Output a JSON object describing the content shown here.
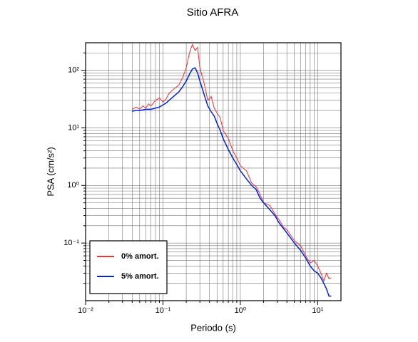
{
  "chart_data": {
    "type": "line",
    "title": "Sitio AFRA",
    "x_label": "Periodo (s)",
    "y_label": "PSA (cm/s²)",
    "log_x": true,
    "log_y": true,
    "grid": true,
    "legend": "lower left",
    "xlim": [
      0.01,
      20
    ],
    "ylim": [
      0.01,
      300
    ],
    "xticks": [
      {
        "value": 0.01,
        "label": "10⁻²"
      },
      {
        "value": 0.1,
        "label": "10⁻¹"
      },
      {
        "value": 1,
        "label": "10⁰"
      },
      {
        "value": 10,
        "label": "10¹"
      }
    ],
    "yticks": [
      {
        "value": 0.1,
        "label": "10⁻¹"
      },
      {
        "value": 1,
        "label": "10⁰"
      },
      {
        "value": 10,
        "label": "10¹"
      },
      {
        "value": 100,
        "label": "10²"
      }
    ],
    "xminorticks": [
      0.02,
      0.03,
      0.04,
      0.05,
      0.06,
      0.07,
      0.08,
      0.09,
      0.2,
      0.3,
      0.4,
      0.5,
      0.6,
      0.7,
      0.8,
      0.9,
      2,
      3,
      4,
      5,
      6,
      7,
      8,
      9
    ],
    "yminorticks": [
      0.02,
      0.03,
      0.04,
      0.05,
      0.06,
      0.07,
      0.08,
      0.09,
      0.2,
      0.3,
      0.4,
      0.5,
      0.6,
      0.7,
      0.8,
      0.9,
      2,
      3,
      4,
      5,
      6,
      7,
      8,
      9,
      20,
      30,
      40,
      50,
      60,
      70,
      80,
      90,
      200
    ],
    "x": [
      0.04,
      0.045,
      0.05,
      0.055,
      0.06,
      0.065,
      0.07,
      0.08,
      0.09,
      0.1,
      0.11,
      0.12,
      0.14,
      0.16,
      0.18,
      0.2,
      0.22,
      0.24,
      0.26,
      0.28,
      0.3,
      0.34,
      0.38,
      0.42,
      0.46,
      0.5,
      0.55,
      0.6,
      0.7,
      0.8,
      0.9,
      1.0,
      1.2,
      1.4,
      1.6,
      1.8,
      2.0,
      2.4,
      2.8,
      3.2,
      3.6,
      4.0,
      5.0,
      6.0,
      7.0,
      8.0,
      9.0,
      10,
      11,
      12,
      13,
      14,
      15
    ],
    "series": [
      {
        "name": "0% amort.",
        "color": "#ee3333",
        "values": [
          21,
          23,
          21,
          24,
          22,
          26,
          24,
          30,
          33,
          28,
          32,
          40,
          48,
          55,
          75,
          110,
          200,
          280,
          220,
          250,
          110,
          60,
          30,
          35,
          22,
          18,
          15,
          9,
          6.5,
          4,
          3,
          2.2,
          1.8,
          1.1,
          0.95,
          0.7,
          0.5,
          0.45,
          0.32,
          0.25,
          0.19,
          0.17,
          0.11,
          0.09,
          0.06,
          0.045,
          0.05,
          0.04,
          0.03,
          0.022,
          0.03,
          0.024,
          0.025
        ]
      },
      {
        "name": "5% amort.",
        "color": "#0022dd",
        "values": [
          19.5,
          20,
          20,
          20.5,
          21,
          21,
          21,
          22,
          23,
          25,
          27,
          30,
          36,
          42,
          52,
          65,
          85,
          105,
          110,
          90,
          65,
          38,
          24,
          19,
          16,
          12,
          9,
          6.5,
          4.2,
          3.0,
          2.3,
          1.8,
          1.3,
          1.0,
          0.85,
          0.6,
          0.5,
          0.38,
          0.3,
          0.22,
          0.18,
          0.15,
          0.1,
          0.075,
          0.055,
          0.04,
          0.033,
          0.03,
          0.025,
          0.02,
          0.016,
          0.012,
          0.012
        ]
      }
    ]
  }
}
